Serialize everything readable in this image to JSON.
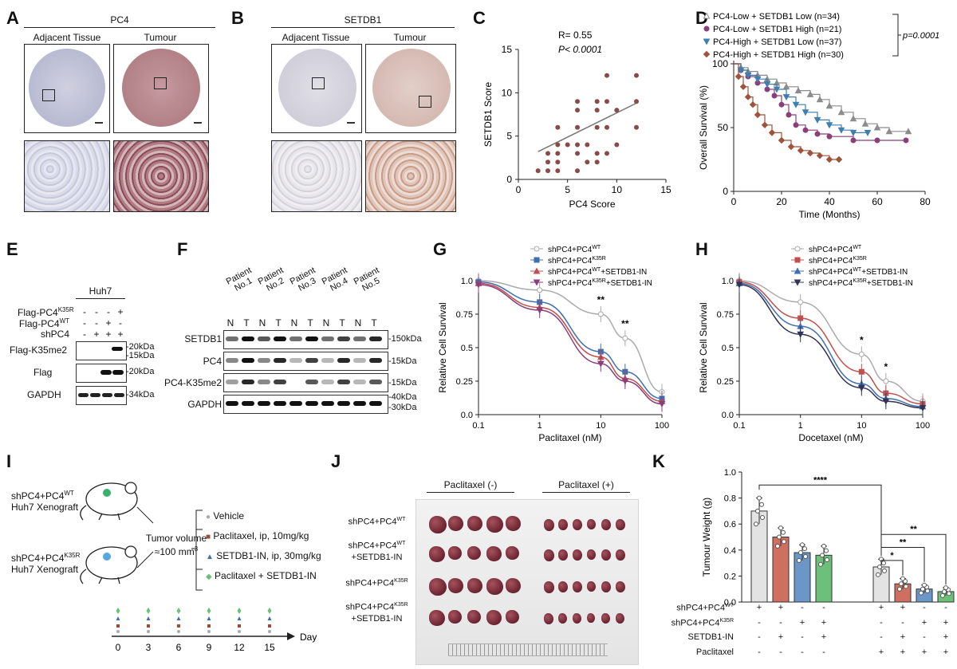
{
  "panels": {
    "A": "A",
    "B": "B",
    "C": "C",
    "D": "D",
    "E": "E",
    "F": "F",
    "G": "G",
    "H": "H",
    "I": "I",
    "J": "J",
    "K": "K"
  },
  "panelA": {
    "title": "PC4",
    "left": "Adjacent Tissue",
    "right": "Tumour"
  },
  "panelB": {
    "title": "SETDB1",
    "left": "Adjacent Tissue",
    "right": "Tumour"
  },
  "panelE": {
    "group": "Huh7",
    "rows": [
      "Flag-PC4",
      "Flag-PC4",
      "shPC4"
    ],
    "row_sup": [
      "K35R",
      "WT",
      ""
    ],
    "signs": [
      [
        "-",
        "-",
        "-",
        "+"
      ],
      [
        "-",
        "-",
        "+",
        "-"
      ],
      [
        "-",
        "+",
        "+",
        "+"
      ]
    ],
    "blots": [
      "Flag-K35me2",
      "Flag",
      "GAPDH"
    ],
    "markers": [
      "20kDa",
      "15kDa",
      "20kDa",
      "34kDa"
    ]
  },
  "panelF": {
    "patients": [
      "Patient No.1",
      "Patient No.2",
      "Patient No.3",
      "Patient No.4",
      "Patient No.5"
    ],
    "lanes": [
      "N",
      "T",
      "N",
      "T",
      "N",
      "T",
      "N",
      "T",
      "N",
      "T"
    ],
    "blots": [
      "SETDB1",
      "PC4",
      "PC4-K35me2",
      "GAPDH"
    ],
    "markers": [
      "150kDa",
      "15kDa",
      "15kDa",
      "40kDa",
      "30kDa"
    ]
  },
  "panelI": {
    "g1a": "shPC4+PC4",
    "g1sup": "WT",
    "g1b": "Huh7 Xenograft",
    "g2a": "shPC4+PC4",
    "g2sup": "K35R",
    "g2b": "Huh7 Xenograft",
    "tumor1": "Tumor volume",
    "tumor2": "≈100 mm",
    "tumor2sup": "3",
    "treatments": [
      "Vehicle",
      "Paclitaxel, ip, 10mg/kg",
      "SETDB1-IN, ip, 30mg/kg",
      "Paclitaxel + SETDB1-IN"
    ],
    "days": [
      "0",
      "3",
      "6",
      "9",
      "12",
      "15"
    ],
    "day_label": "Day"
  },
  "panelJ": {
    "neg": "Paclitaxel (-)",
    "pos": "Paclitaxel (+)",
    "rows": [
      {
        "a": "shPC4+PC4",
        "sup": "WT",
        "b": ""
      },
      {
        "a": "shPC4+PC4",
        "sup": "WT",
        "b": "+SETDB1-IN"
      },
      {
        "a": "shPC4+PC4",
        "sup": "K35R",
        "b": ""
      },
      {
        "a": "shPC4+PC4",
        "sup": "K35R",
        "b": "+SETDB1-IN"
      }
    ]
  },
  "panelK": {
    "rows": [
      {
        "label": "shPC4+PC4",
        "sup": "WT",
        "signs": [
          "+",
          "+",
          "-",
          "-",
          "+",
          "+",
          "-",
          "-"
        ]
      },
      {
        "label": "shPC4+PC4",
        "sup": "K35R",
        "signs": [
          "-",
          "-",
          "+",
          "+",
          "-",
          "-",
          "+",
          "+"
        ]
      },
      {
        "label": "SETDB1-IN",
        "sup": "",
        "signs": [
          "-",
          "+",
          "-",
          "+",
          "-",
          "+",
          "-",
          "+"
        ]
      },
      {
        "label": "Paclitaxel",
        "sup": "",
        "signs": [
          "-",
          "-",
          "-",
          "-",
          "+",
          "+",
          "+",
          "+"
        ]
      }
    ]
  },
  "colors": {
    "tissue_normal": "#c9cbdc",
    "tissue_tumor": "#b9888d",
    "gray": "#aaaaaa",
    "blue": "#3f6fb0",
    "red": "#c0504d",
    "purple": "#8b3f7a",
    "teal": "#4a7fa0",
    "brown": "#9e4a3a",
    "k_gray": "#e3e3e3",
    "k_red": "#cf6f60",
    "k_blue": "#6b97c8",
    "k_green": "#6cc07a"
  },
  "chart_data": [
    {
      "panel": "C",
      "type": "scatter",
      "xlabel": "PC4 Score",
      "ylabel": "SETDB1 Score",
      "xlim": [
        0,
        15
      ],
      "ylim": [
        0,
        15
      ],
      "xticks": [
        0,
        5,
        10,
        15
      ],
      "yticks": [
        0,
        5,
        10,
        15
      ],
      "annotations": [
        "R= 0.55",
        "P< 0.0001"
      ],
      "points": [
        [
          2,
          1
        ],
        [
          3,
          1
        ],
        [
          3,
          2
        ],
        [
          3,
          3
        ],
        [
          4,
          1
        ],
        [
          4,
          2
        ],
        [
          4,
          3
        ],
        [
          4,
          4
        ],
        [
          4,
          6
        ],
        [
          5,
          4
        ],
        [
          6,
          1
        ],
        [
          6,
          3
        ],
        [
          6,
          4
        ],
        [
          6,
          6
        ],
        [
          6,
          8
        ],
        [
          6,
          9
        ],
        [
          7,
          2
        ],
        [
          7,
          4
        ],
        [
          8,
          2
        ],
        [
          8,
          3
        ],
        [
          8,
          6
        ],
        [
          8,
          8
        ],
        [
          8,
          9
        ],
        [
          9,
          3
        ],
        [
          9,
          6
        ],
        [
          9,
          9
        ],
        [
          10,
          4
        ],
        [
          10,
          8
        ],
        [
          12,
          6
        ],
        [
          12,
          9
        ],
        [
          12,
          12
        ],
        [
          9,
          12
        ]
      ],
      "trend": [
        [
          2,
          3.2
        ],
        [
          12,
          8.8
        ]
      ]
    },
    {
      "panel": "D",
      "type": "line",
      "xlabel": "Time (Months)",
      "ylabel": "Overall Survival (%)",
      "xlim": [
        0,
        80
      ],
      "ylim": [
        0,
        100
      ],
      "xticks": [
        0,
        20,
        40,
        60,
        80
      ],
      "yticks": [
        0,
        50,
        100
      ],
      "pvalue": "p=0.0001",
      "series": [
        {
          "name": "PC4-Low + SETDB1 Low (n=34)",
          "color": "#8c8c8c",
          "marker": "triangle",
          "x": [
            0,
            3,
            6,
            10,
            14,
            18,
            22,
            27,
            32,
            36,
            40,
            45,
            50,
            55,
            60,
            65,
            73
          ],
          "y": [
            100,
            97,
            94,
            91,
            88,
            85,
            82,
            79,
            76,
            72,
            67,
            62,
            57,
            53,
            50,
            47,
            47
          ]
        },
        {
          "name": "PC4-Low + SETDB1 High (n=21)",
          "color": "#8b3f7a",
          "marker": "circle",
          "x": [
            0,
            3,
            6,
            10,
            14,
            17,
            20,
            23,
            26,
            30,
            35,
            40,
            50,
            60,
            72
          ],
          "y": [
            100,
            95,
            90,
            85,
            80,
            75,
            68,
            60,
            52,
            48,
            45,
            43,
            40,
            40,
            40
          ]
        },
        {
          "name": "PC4-High + SETDB1 Low (n=37)",
          "color": "#3f7fb0",
          "marker": "tri_down",
          "x": [
            0,
            3,
            6,
            10,
            14,
            18,
            22,
            26,
            30,
            35,
            40,
            45,
            50,
            56
          ],
          "y": [
            100,
            95,
            91,
            88,
            84,
            80,
            74,
            68,
            62,
            56,
            52,
            48,
            46,
            46
          ]
        },
        {
          "name": "PC4-High + SETDB1 High (n=30)",
          "color": "#a0523a",
          "marker": "diamond",
          "x": [
            0,
            2,
            4,
            6,
            8,
            10,
            13,
            16,
            20,
            24,
            28,
            32,
            36,
            40,
            44
          ],
          "y": [
            100,
            90,
            82,
            74,
            68,
            60,
            52,
            46,
            40,
            35,
            32,
            30,
            28,
            25,
            25
          ]
        }
      ]
    },
    {
      "panel": "G",
      "type": "line",
      "xlabel": "Paclitaxel (nM)",
      "ylabel": "Relative Cell Survival",
      "xscale": "log",
      "xlim": [
        0.1,
        100
      ],
      "ylim": [
        0,
        1.0
      ],
      "xticks": [
        0.1,
        1,
        10,
        100
      ],
      "yticks": [
        0.0,
        0.25,
        0.5,
        0.75,
        1.0
      ],
      "x": [
        0.1,
        1,
        10,
        25,
        100
      ],
      "significance": [
        {
          "x": 10,
          "label": "**"
        },
        {
          "x": 25,
          "label": "**"
        }
      ],
      "series": [
        {
          "name": "shPC4+PC4WT",
          "color": "#aaaaaa",
          "marker": "circle",
          "y": [
            1.0,
            0.93,
            0.75,
            0.57,
            0.17
          ]
        },
        {
          "name": "shPC4+PC4K35R",
          "color": "#3f6fb0",
          "marker": "square",
          "y": [
            0.99,
            0.84,
            0.47,
            0.32,
            0.12
          ]
        },
        {
          "name": "shPC4+PC4WT+SETDB1-IN",
          "color": "#c0504d",
          "marker": "triangle",
          "y": [
            0.98,
            0.8,
            0.43,
            0.27,
            0.1
          ]
        },
        {
          "name": "shPC4+PC4K35R+SETDB1-IN",
          "color": "#8b3f7a",
          "marker": "tri_down",
          "y": [
            0.97,
            0.78,
            0.38,
            0.25,
            0.08
          ]
        }
      ]
    },
    {
      "panel": "H",
      "type": "line",
      "xlabel": "Docetaxel (nM)",
      "ylabel": "Relative Cell Survival",
      "xscale": "log",
      "xlim": [
        0.1,
        100
      ],
      "ylim": [
        0,
        1.0
      ],
      "xticks": [
        0.1,
        1,
        10,
        100
      ],
      "yticks": [
        0.0,
        0.25,
        0.5,
        0.75,
        1.0
      ],
      "x": [
        0.1,
        1,
        10,
        25,
        100
      ],
      "significance": [
        {
          "x": 10,
          "label": "*"
        },
        {
          "x": 25,
          "label": "*"
        }
      ],
      "series": [
        {
          "name": "shPC4+PC4WT",
          "color": "#aaaaaa",
          "marker": "circle",
          "y": [
            1.0,
            0.84,
            0.45,
            0.25,
            0.1
          ]
        },
        {
          "name": "shPC4+PC4K35R",
          "color": "#c0504d",
          "marker": "square",
          "y": [
            0.99,
            0.72,
            0.32,
            0.16,
            0.08
          ]
        },
        {
          "name": "shPC4+PC4WT+SETDB1-IN",
          "color": "#3f6fb0",
          "marker": "triangle",
          "y": [
            0.98,
            0.66,
            0.23,
            0.12,
            0.06
          ]
        },
        {
          "name": "shPC4+PC4K35R+SETDB1-IN",
          "color": "#333355",
          "marker": "tri_down",
          "y": [
            0.97,
            0.6,
            0.2,
            0.1,
            0.05
          ]
        }
      ]
    },
    {
      "panel": "K",
      "type": "bar",
      "ylabel": "Tumour Weight (g)",
      "ylim": [
        0,
        1.0
      ],
      "yticks": [
        0.0,
        0.2,
        0.4,
        0.6,
        0.8,
        1.0
      ],
      "values": [
        0.7,
        0.5,
        0.38,
        0.36,
        0.27,
        0.14,
        0.1,
        0.08
      ],
      "errors": [
        0.1,
        0.07,
        0.06,
        0.07,
        0.06,
        0.04,
        0.03,
        0.03
      ],
      "colors": [
        "#e3e3e3",
        "#cf6f60",
        "#6b97c8",
        "#6cc07a",
        "#e3e3e3",
        "#cf6f60",
        "#6b97c8",
        "#6cc07a"
      ],
      "significance": [
        {
          "label": "****",
          "from": 0,
          "to": 4
        },
        {
          "label": "**",
          "from": 4,
          "to": 7
        },
        {
          "label": "**",
          "from": 4,
          "to": 6
        },
        {
          "label": "*",
          "from": 4,
          "to": 5
        }
      ]
    }
  ]
}
